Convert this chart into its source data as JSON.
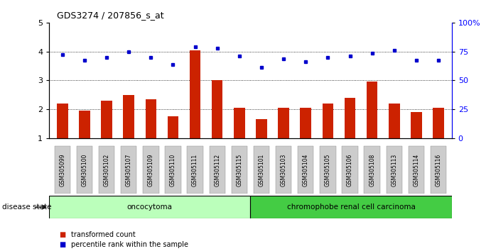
{
  "title": "GDS3274 / 207856_s_at",
  "samples": [
    "GSM305099",
    "GSM305100",
    "GSM305102",
    "GSM305107",
    "GSM305109",
    "GSM305110",
    "GSM305111",
    "GSM305112",
    "GSM305115",
    "GSM305101",
    "GSM305103",
    "GSM305104",
    "GSM305105",
    "GSM305106",
    "GSM305108",
    "GSM305113",
    "GSM305114",
    "GSM305116"
  ],
  "red_values": [
    2.2,
    1.95,
    2.3,
    2.5,
    2.35,
    1.75,
    4.05,
    3.0,
    2.05,
    1.65,
    2.05,
    2.05,
    2.2,
    2.4,
    2.95,
    2.2,
    1.9,
    2.05
  ],
  "blue_values": [
    3.9,
    3.7,
    3.8,
    4.0,
    3.8,
    3.55,
    4.15,
    4.1,
    3.85,
    3.45,
    3.75,
    3.65,
    3.8,
    3.85,
    3.95,
    4.05,
    3.7,
    3.7
  ],
  "groups": [
    {
      "label": "oncocytoma",
      "start": 0,
      "end": 8,
      "color": "#bbffbb"
    },
    {
      "label": "chromophobe renal cell carcinoma",
      "start": 9,
      "end": 17,
      "color": "#44cc44"
    }
  ],
  "disease_state_label": "disease state",
  "ylim_left": [
    1,
    5
  ],
  "ylim_right": [
    0,
    100
  ],
  "yticks_left": [
    1,
    2,
    3,
    4,
    5
  ],
  "yticks_right": [
    0,
    25,
    50,
    75,
    100
  ],
  "ytick_labels_right": [
    "0",
    "25",
    "50",
    "75",
    "100%"
  ],
  "bar_color": "#cc2200",
  "dot_color": "#0000cc",
  "bar_width": 0.5,
  "grid_color": "black",
  "legend_items": [
    {
      "label": "transformed count",
      "color": "#cc2200"
    },
    {
      "label": "percentile rank within the sample",
      "color": "#0000cc"
    }
  ],
  "background_color": "#ffffff",
  "tick_label_bg": "#cccccc"
}
